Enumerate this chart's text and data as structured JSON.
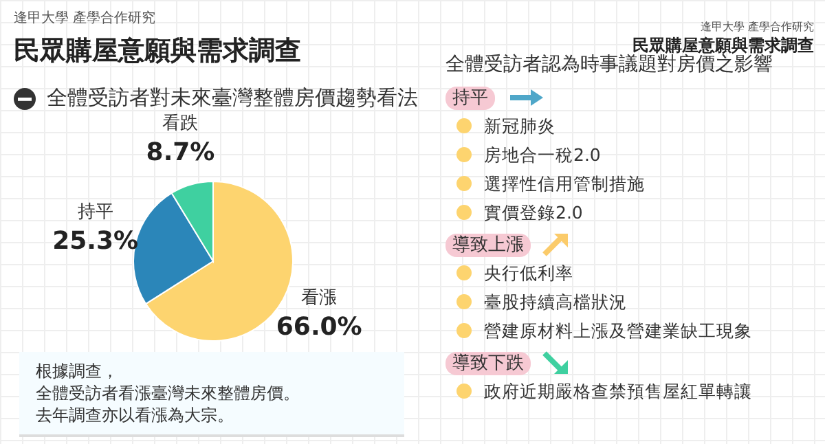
{
  "chart_data": [
    {
      "type": "pie",
      "title": "民眾購屋意願與需求調查",
      "subtitle": "全體受訪者對未來臺灣整體房價趨勢看法",
      "categories": [
        "看漲",
        "持平",
        "看跌"
      ],
      "values": [
        66.0,
        25.3,
        8.7
      ],
      "colors": [
        "#fdd46f",
        "#2b86b9",
        "#3fd0a0"
      ],
      "value_labels": [
        "66.0%",
        "25.3%",
        "8.7%"
      ],
      "annotations": [
        "逢甲大學 產學合作研究",
        "根據調查，",
        "全體受訪者看漲臺灣未來整體房價。",
        "去年調查亦以看漲為大宗。"
      ]
    },
    {
      "type": "other",
      "title": "民眾購屋意願與需求調查",
      "subtitle": "全體受訪者認為時事議題對房價之影響",
      "annotations": [
        "逢甲大學 產學合作研究",
        "持平",
        "新冠肺炎",
        "房地合一稅2.0",
        "選擇性信用管制措施",
        "實價登錄2.0",
        "導致上漲",
        "央行低利率",
        "臺股持續高檔狀況",
        "營建原材料上漲及營建業缺工現象",
        "導致下跌",
        "政府近期嚴格查禁預售屋紅單轉讓"
      ]
    }
  ]
}
